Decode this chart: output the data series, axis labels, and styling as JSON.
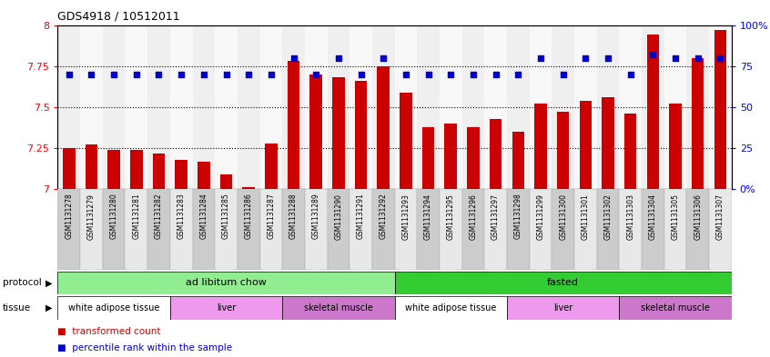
{
  "title": "GDS4918 / 10512011",
  "samples": [
    "GSM1131278",
    "GSM1131279",
    "GSM1131280",
    "GSM1131281",
    "GSM1131282",
    "GSM1131283",
    "GSM1131284",
    "GSM1131285",
    "GSM1131286",
    "GSM1131287",
    "GSM1131288",
    "GSM1131289",
    "GSM1131290",
    "GSM1131291",
    "GSM1131292",
    "GSM1131293",
    "GSM1131294",
    "GSM1131295",
    "GSM1131296",
    "GSM1131297",
    "GSM1131298",
    "GSM1131299",
    "GSM1131300",
    "GSM1131301",
    "GSM1131302",
    "GSM1131303",
    "GSM1131304",
    "GSM1131305",
    "GSM1131306",
    "GSM1131307"
  ],
  "bar_values": [
    7.25,
    7.27,
    7.24,
    7.24,
    7.22,
    7.18,
    7.17,
    7.09,
    7.01,
    7.28,
    7.78,
    7.7,
    7.68,
    7.66,
    7.75,
    7.59,
    7.38,
    7.4,
    7.38,
    7.43,
    7.35,
    7.52,
    7.47,
    7.54,
    7.56,
    7.46,
    7.94,
    7.52,
    7.8,
    7.97
  ],
  "dot_values_pct": [
    70,
    70,
    70,
    70,
    70,
    70,
    70,
    70,
    70,
    70,
    80,
    70,
    80,
    70,
    80,
    70,
    70,
    70,
    70,
    70,
    70,
    80,
    70,
    80,
    80,
    70,
    82,
    80,
    80,
    80
  ],
  "bar_color": "#cc0000",
  "dot_color": "#0000cc",
  "ylim_left": [
    7.0,
    8.0
  ],
  "ylim_right": [
    0,
    100
  ],
  "yticks_left": [
    7.0,
    7.25,
    7.5,
    7.75,
    8.0
  ],
  "ytick_labels_left": [
    "7",
    "7.25",
    "7.5",
    "7.75",
    "8"
  ],
  "yticks_right": [
    0,
    25,
    50,
    75,
    100
  ],
  "ytick_labels_right": [
    "0%",
    "25",
    "50",
    "75",
    "100%"
  ],
  "hlines": [
    7.25,
    7.5,
    7.75
  ],
  "protocol_groups": [
    {
      "label": "ad libitum chow",
      "start": 0,
      "end": 14,
      "color": "#90ee90"
    },
    {
      "label": "fasted",
      "start": 15,
      "end": 29,
      "color": "#33cc33"
    }
  ],
  "tissue_groups": [
    {
      "label": "white adipose tissue",
      "start": 0,
      "end": 4,
      "color": "#ffffff"
    },
    {
      "label": "liver",
      "start": 5,
      "end": 9,
      "color": "#ee99ee"
    },
    {
      "label": "skeletal muscle",
      "start": 10,
      "end": 14,
      "color": "#cc77cc"
    },
    {
      "label": "white adipose tissue",
      "start": 15,
      "end": 19,
      "color": "#ffffff"
    },
    {
      "label": "liver",
      "start": 20,
      "end": 24,
      "color": "#ee99ee"
    },
    {
      "label": "skeletal muscle",
      "start": 25,
      "end": 29,
      "color": "#cc77cc"
    }
  ],
  "col_bg_even": "#cccccc",
  "col_bg_odd": "#e8e8e8",
  "legend_items": [
    {
      "label": "transformed count",
      "color": "#cc0000"
    },
    {
      "label": "percentile rank within the sample",
      "color": "#0000cc"
    }
  ]
}
